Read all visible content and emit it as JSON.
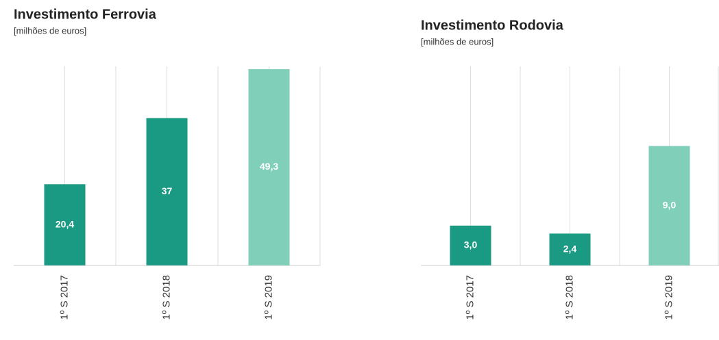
{
  "chart_data": [
    {
      "type": "bar",
      "title": "Investimento Ferrovia",
      "subtitle": "[milhões de euros]",
      "categories": [
        "1º S 2017",
        "1º S 2018",
        "1º S 2019"
      ],
      "values": [
        20.4,
        37,
        49.3
      ],
      "value_labels": [
        "20,4",
        "37",
        "49,3"
      ],
      "colors": [
        "#1a9a82",
        "#1a9a82",
        "#7fcfb9"
      ],
      "ylim": [
        0,
        50
      ],
      "grid": true
    },
    {
      "type": "bar",
      "title": "Investimento Rodovia",
      "subtitle": "[milhões de euros]",
      "categories": [
        "1º S 2017",
        "1º S 2018",
        "1º S 2019"
      ],
      "values": [
        3.0,
        2.4,
        9.0
      ],
      "value_labels": [
        "3,0",
        "2,4",
        "9,0"
      ],
      "colors": [
        "#1a9a82",
        "#1a9a82",
        "#7fcfb9"
      ],
      "ylim": [
        0,
        15
      ],
      "grid": true
    }
  ]
}
